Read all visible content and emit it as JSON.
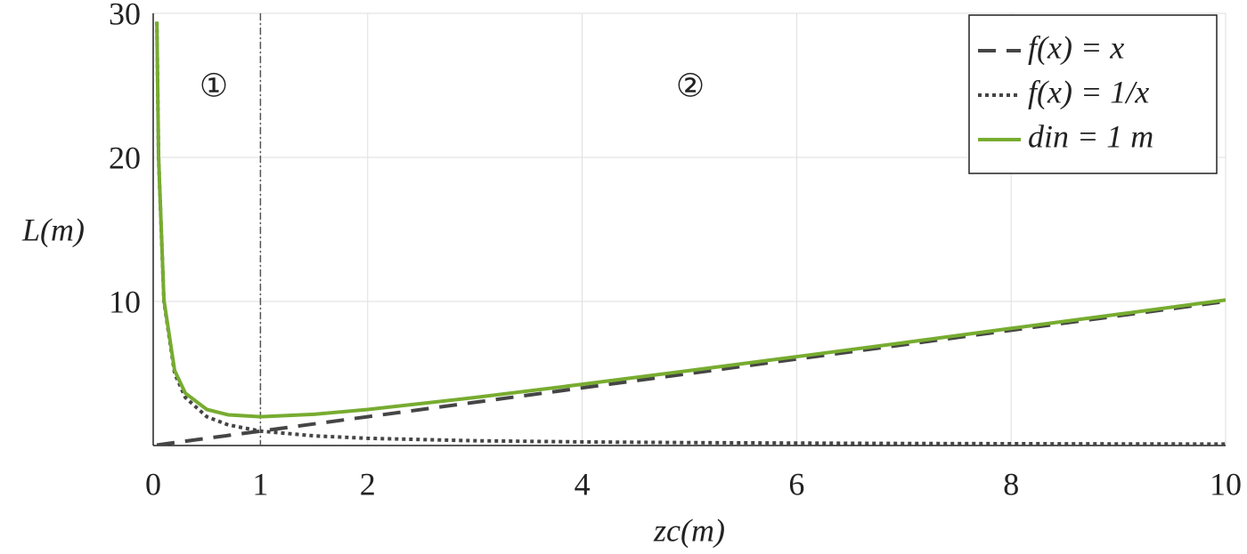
{
  "chart_data": {
    "type": "line",
    "x_label": "zc(m)",
    "y_label": "L(m)",
    "x": [
      0.034,
      0.05,
      0.1,
      0.2,
      0.3,
      0.5,
      0.7,
      1,
      1.5,
      2,
      3,
      4,
      5,
      6,
      7,
      8,
      9,
      10
    ],
    "series": [
      {
        "name": "f(x) = x",
        "color": "#454545",
        "style": "dashed",
        "values": [
          0.034,
          0.05,
          0.1,
          0.2,
          0.3,
          0.5,
          0.7,
          1,
          1.5,
          2,
          3,
          4,
          5,
          6,
          7,
          8,
          9,
          10
        ]
      },
      {
        "name": "f(x) = 1/x",
        "color": "#454545",
        "style": "dotted",
        "values": [
          29.4,
          20,
          10,
          5,
          3.33,
          2,
          1.43,
          1,
          0.67,
          0.5,
          0.33,
          0.25,
          0.2,
          0.17,
          0.14,
          0.125,
          0.11,
          0.1
        ]
      },
      {
        "name": "din = 1 m",
        "color": "#77ac30",
        "style": "solid",
        "values": [
          29.43,
          20.05,
          10.1,
          5.2,
          3.63,
          2.5,
          2.13,
          2,
          2.17,
          2.5,
          3.33,
          4.25,
          5.2,
          6.17,
          7.14,
          8.13,
          9.11,
          10.1
        ]
      }
    ],
    "vlines": [
      1
    ],
    "annotations": [
      "①",
      "②"
    ],
    "xlim": [
      0,
      10
    ],
    "xticks": [
      0,
      1,
      2,
      4,
      6,
      8,
      10
    ],
    "ylim": [
      0,
      30
    ],
    "yticks": [
      10,
      20,
      30
    ],
    "grid": true,
    "legend": "upper right"
  }
}
